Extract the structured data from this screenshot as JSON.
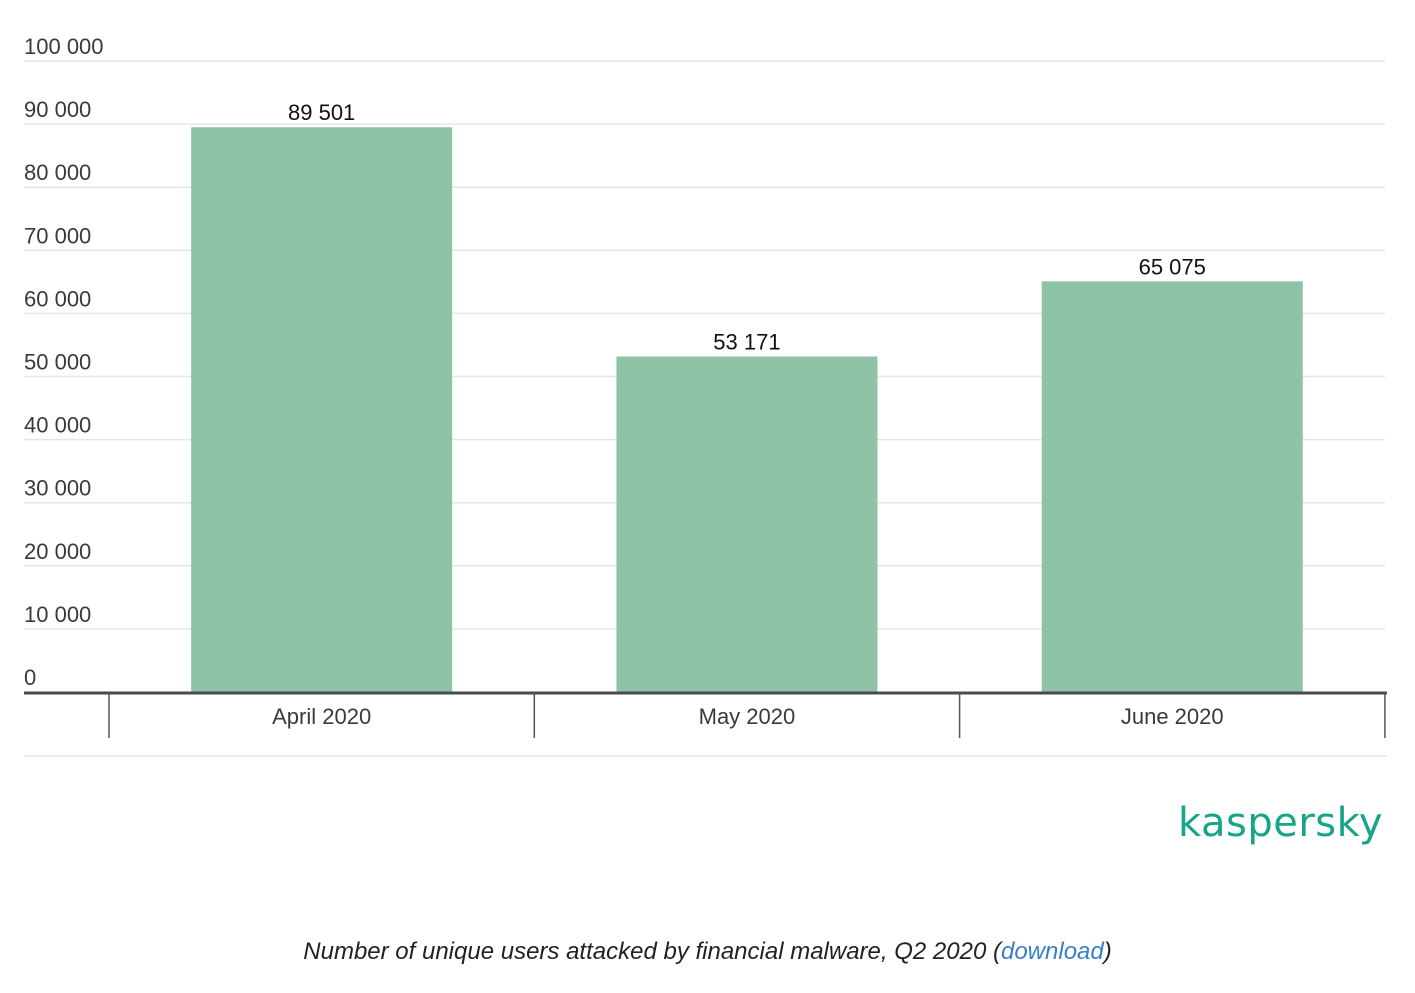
{
  "chart_data": {
    "type": "bar",
    "categories": [
      "April 2020",
      "May 2020",
      "June 2020"
    ],
    "values": [
      89501,
      53171,
      65075
    ],
    "data_labels": [
      "89 501",
      "53 171",
      "65 075"
    ],
    "yticks": [
      0,
      10000,
      20000,
      30000,
      40000,
      50000,
      60000,
      70000,
      80000,
      90000,
      100000
    ],
    "ytick_labels": [
      "0",
      "10 000",
      "20 000",
      "30 000",
      "40 000",
      "50 000",
      "60 000",
      "70 000",
      "80 000",
      "90 000",
      "100 000"
    ],
    "ylim": [
      0,
      100000
    ],
    "grid": true,
    "bar_color": "#8fc3a8",
    "title": "",
    "xlabel": "",
    "ylabel": ""
  },
  "brand": {
    "name": "kaspersky",
    "color": "#16a588"
  },
  "caption": {
    "text": "Number of unique users attacked by financial malware, Q2 2020",
    "open": " (",
    "link": "download",
    "close": ")",
    "link_color": "#3a80c7"
  }
}
